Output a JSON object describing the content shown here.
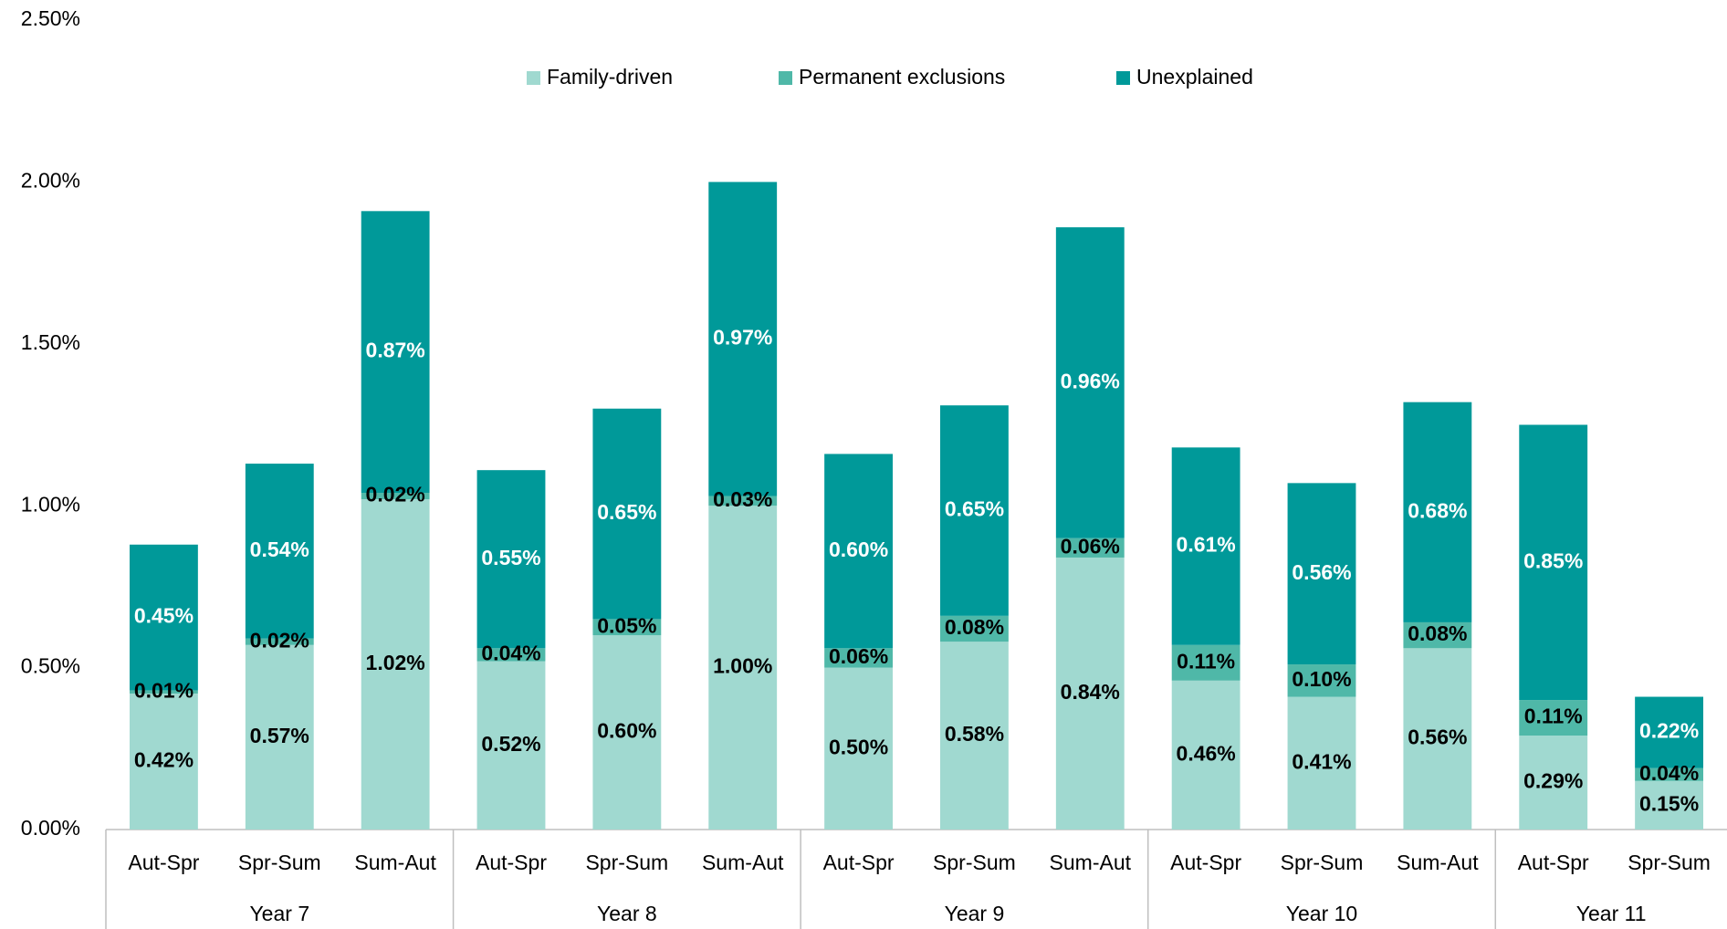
{
  "chart_data": {
    "type": "stacked_bar",
    "groups": [
      {
        "name": "Year 7",
        "categories": [
          "Aut-Spr",
          "Spr-Sum",
          "Sum-Aut"
        ]
      },
      {
        "name": "Year 8",
        "categories": [
          "Aut-Spr",
          "Spr-Sum",
          "Sum-Aut"
        ]
      },
      {
        "name": "Year 9",
        "categories": [
          "Aut-Spr",
          "Spr-Sum",
          "Sum-Aut"
        ]
      },
      {
        "name": "Year 10",
        "categories": [
          "Aut-Spr",
          "Spr-Sum",
          "Sum-Aut"
        ]
      },
      {
        "name": "Year 11",
        "categories": [
          "Aut-Spr",
          "Spr-Sum"
        ]
      }
    ],
    "series": [
      {
        "name": "Family-driven",
        "color": "#a0d9d0",
        "label_color": "#000000",
        "values": [
          0.42,
          0.57,
          1.02,
          0.52,
          0.6,
          1.0,
          0.5,
          0.58,
          0.84,
          0.46,
          0.41,
          0.56,
          0.29,
          0.15
        ],
        "value_labels": [
          "0.42%",
          "0.57%",
          "1.02%",
          "0.52%",
          "0.60%",
          "1.00%",
          "0.50%",
          "0.58%",
          "0.84%",
          "0.46%",
          "0.41%",
          "0.56%",
          "0.29%",
          "0.15%"
        ]
      },
      {
        "name": "Permanent exclusions",
        "color": "#4fb8a8",
        "label_color": "#000000",
        "values": [
          0.01,
          0.02,
          0.02,
          0.04,
          0.05,
          0.03,
          0.06,
          0.08,
          0.06,
          0.11,
          0.1,
          0.08,
          0.11,
          0.04
        ],
        "value_labels": [
          "0.01%",
          "0.02%",
          "0.02%",
          "0.04%",
          "0.05%",
          "0.03%",
          "0.06%",
          "0.08%",
          "0.06%",
          "0.11%",
          "0.10%",
          "0.08%",
          "0.11%",
          "0.04%"
        ]
      },
      {
        "name": "Unexplained",
        "color": "#009999",
        "label_color": "#ffffff",
        "values": [
          0.45,
          0.54,
          0.87,
          0.55,
          0.65,
          0.97,
          0.6,
          0.65,
          0.96,
          0.61,
          0.56,
          0.68,
          0.85,
          0.22
        ],
        "value_labels": [
          "0.45%",
          "0.54%",
          "0.87%",
          "0.55%",
          "0.65%",
          "0.97%",
          "0.60%",
          "0.65%",
          "0.96%",
          "0.61%",
          "0.56%",
          "0.68%",
          "0.85%",
          "0.22%"
        ]
      }
    ],
    "ylim": [
      0,
      2.5
    ],
    "yticks": [
      {
        "value": 0,
        "label": "0.00%"
      },
      {
        "value": 0.5,
        "label": "0.50%"
      },
      {
        "value": 1,
        "label": "1.00%"
      },
      {
        "value": 1.5,
        "label": "1.50%"
      },
      {
        "value": 2,
        "label": "2.00%"
      },
      {
        "value": 2.5,
        "label": "2.50%"
      }
    ],
    "grid": false,
    "legend": "top"
  }
}
